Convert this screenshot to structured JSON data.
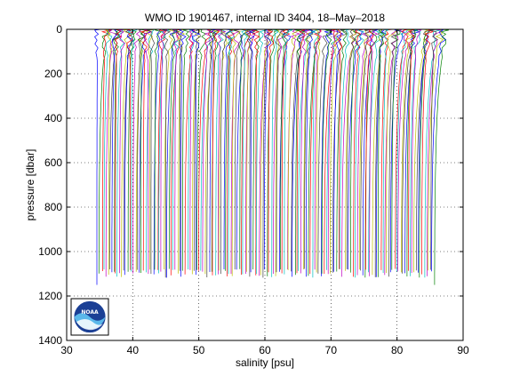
{
  "chart_data": {
    "type": "line",
    "title": "WMO ID 1901467, internal ID 3404, 18–May–2018",
    "xlabel": "salinity [psu]",
    "ylabel": "pressure [dbar]",
    "xlim": [
      30,
      90
    ],
    "ylim": [
      0,
      1400
    ],
    "y_reversed": true,
    "grid": true,
    "x_ticks": [
      "30",
      "40",
      "50",
      "60",
      "70",
      "80",
      "90"
    ],
    "y_ticks": [
      "0",
      "200",
      "400",
      "600",
      "800",
      "1000",
      "1200",
      "1400"
    ],
    "series_description": "Waterfall of salinity profiles, each profile offset along the x axis",
    "profile_count": 170,
    "first_profile_surface_salinity": 35.2,
    "last_profile_surface_salinity": 87.0,
    "deep_offset_range": [
      34.7,
      85.6
    ],
    "max_pressure": 1150,
    "typical_profile_bottom": 1090,
    "colors": [
      "#0000ff",
      "#008000",
      "#ff0000",
      "#00bfbf",
      "#bf00bf",
      "#bfbf00",
      "#404040"
    ]
  },
  "logo": {
    "name": "noaa-logo",
    "text": "NOAA"
  }
}
